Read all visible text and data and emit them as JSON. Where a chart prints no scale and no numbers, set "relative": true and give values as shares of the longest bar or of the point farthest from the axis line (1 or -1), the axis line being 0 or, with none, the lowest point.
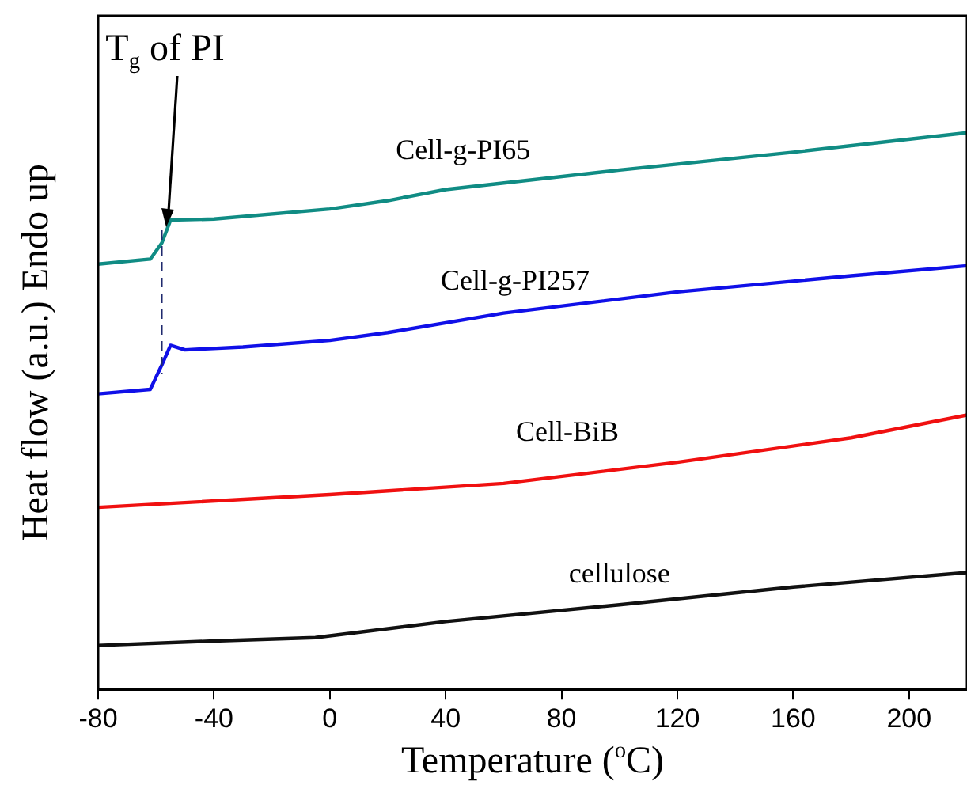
{
  "chart_data": {
    "type": "line",
    "relative": true,
    "xlabel": "Temperature ($^{o}$C)",
    "ylabel": "Heat flow (a.u.) Endo up",
    "xlim": [
      -80,
      220
    ],
    "xticks": [
      -80,
      -40,
      0,
      40,
      80,
      120,
      160,
      200
    ],
    "tick_labels": "x",
    "grid": false,
    "legend": false,
    "marker": "none",
    "line_style": "solid",
    "annotations": [
      "T$_{g}$ of PI"
    ],
    "ref_lines": [
      {
        "axis": "x",
        "value": -58,
        "line_style": "dashed",
        "color": "#1f2a6e"
      }
    ],
    "series": [
      {
        "name": "Cell-g-PI65",
        "color": "#108c84",
        "x": [
          -80,
          -62,
          -58,
          -55,
          -40,
          0,
          20,
          40,
          100,
          160,
          220
        ],
        "values": [
          0.764,
          0.773,
          0.802,
          0.843,
          0.845,
          0.863,
          0.878,
          0.898,
          0.933,
          0.965,
          1
        ]
      },
      {
        "name": "Cell-g-PI257",
        "color": "#1010e8",
        "x": [
          -80,
          -62,
          -58,
          -55,
          -50,
          -30,
          0,
          20,
          60,
          120,
          180,
          220
        ],
        "values": [
          0.531,
          0.539,
          0.583,
          0.618,
          0.61,
          0.615,
          0.627,
          0.641,
          0.676,
          0.714,
          0.743,
          0.761
        ]
      },
      {
        "name": "Cell-BiB",
        "color": "#f01010",
        "x": [
          -80,
          0,
          60,
          120,
          180,
          220
        ],
        "values": [
          0.327,
          0.35,
          0.37,
          0.408,
          0.452,
          0.493
        ]
      },
      {
        "name": "cellulose",
        "color": "#111111",
        "x": [
          -80,
          -40,
          -5,
          40,
          100,
          160,
          220
        ],
        "values": [
          0.079,
          0.087,
          0.093,
          0.122,
          0.152,
          0.184,
          0.21
        ]
      }
    ]
  }
}
